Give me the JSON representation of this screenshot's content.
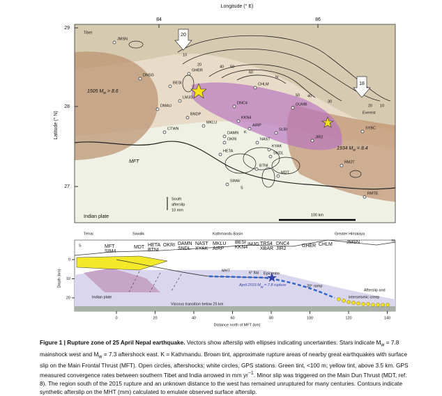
{
  "map": {
    "x_axis_title": "Longitude (° E)",
    "y_axis_title": "Latitude (° N)",
    "x_ticks": [
      "84",
      "86"
    ],
    "y_ticks": [
      "29",
      "28",
      "27"
    ],
    "places": [
      "Tibet",
      "JMSN",
      "DNSG",
      "BESI",
      "GHER",
      "LMJG",
      "DMAU",
      "BNDP",
      "CTWN",
      "MKLU",
      "DNC4",
      "KKN4",
      "AIRP",
      "DAMN",
      "OKRI",
      "K",
      "HETA",
      "NAST",
      "KYAK",
      "SNDL",
      "BTNI",
      "MDT",
      "SIM4/",
      "S",
      "CHLM",
      "N",
      "GUMB",
      "SLBI",
      "JIR2",
      "RMJT",
      "RMTE",
      "SYBC",
      "Everest"
    ],
    "convergence": [
      "20",
      "18"
    ],
    "contour_labels": [
      "10",
      "20",
      "40",
      "50",
      "60",
      "50",
      "40",
      "30",
      "20",
      "10"
    ],
    "quake_1505": [
      "1505 M",
      "w",
      " > 8.6"
    ],
    "quake_1934": [
      "1934 M",
      "w",
      " = 8.4"
    ],
    "fault": "MFT",
    "plate": "Indian plate",
    "afterslip_key": [
      "South",
      "afterslip",
      "10 mm"
    ],
    "scale": "100 km"
  },
  "section": {
    "zones": [
      "Terrai",
      "Siwalik",
      "Kathmandu Basin",
      "Greater Himalaya"
    ],
    "ends": [
      "S",
      "N"
    ],
    "stations": [
      "MFT",
      "SIM4",
      "MDT",
      "HETA",
      "BTNI",
      "OKRI",
      "DAMN",
      "SNDL",
      "NAST",
      "XYAK",
      "MKLU",
      "AIRP",
      "BESI",
      "IMJG",
      "KKN4",
      "TRS4",
      "XBAR",
      "DNC4",
      "JIR2",
      "GHER",
      "CHLM",
      "JMSN"
    ],
    "labels": [
      "MHT",
      "6° flat",
      "Epicentre",
      "20° ramp",
      "Afterslip and",
      "interseismic creep",
      "Indian plate",
      "Viscous transition below 25 km"
    ],
    "rupture": [
      "April 2015 M",
      "w",
      " = 7.8 rupture"
    ],
    "x_ticks": [
      0,
      20,
      40,
      60,
      80,
      100,
      120,
      140
    ],
    "y_ticks": [
      0,
      10,
      20
    ],
    "x_axis_title": "Distance north of MFT (km)",
    "y_axis_title": "Depth (km)"
  },
  "caption": {
    "title": "Figure 1 | Rupture zone of 25 April Nepal earthquake.",
    "parts": [
      "Vectors show afterslip with ellipses indicating uncertainties. Stars indicate M",
      "w",
      " = 7.8 mainshock west and M",
      "w",
      " = 7.3 aftershock east. K = Kathmandu. Brown tint, approximate rupture areas of nearby great earthquakes with surface slip on the Main Frontal Thrust (MFT). Open circles, aftershocks; white circles, GPS stations. Green tint, <100 m; yellow tint, above 3.5 km. GPS measured convergence rates between southern Tibet and India arrowed in mm yr",
      "−1",
      ". Minor slip was triggered on the Main Dun Thrust (MDT, ref. 8). The region south of the 2015 rupture and an unknown distance to the west has remained unruptured for many centuries. Contours indicate synthetic afterslip on the MHT (mm) calculated to emulate observed surface afterslip."
    ]
  }
}
